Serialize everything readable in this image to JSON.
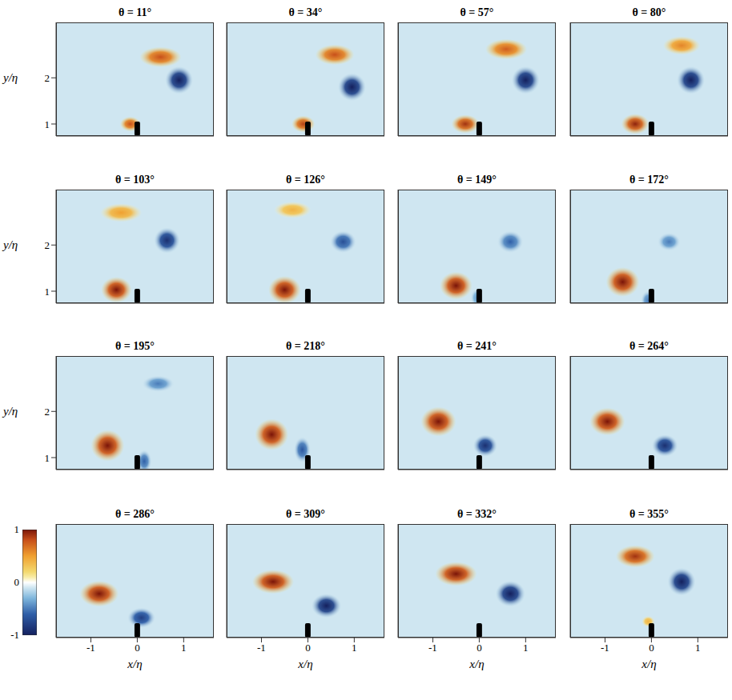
{
  "chart_data": {
    "type": "heatmap",
    "x_label": "x/η",
    "y_label": "y/η",
    "xlim": [
      -1.75,
      1.65
    ],
    "ylim": [
      0.74,
      3.2
    ],
    "xticks": [
      -1,
      0,
      1
    ],
    "yticks": [
      1,
      2
    ],
    "colorbar": {
      "range": [
        -1,
        1
      ],
      "ticks": [
        -1,
        0,
        1
      ]
    },
    "background": -0.1,
    "plate": {
      "x": 0,
      "width": 0.12,
      "tip": 1.05
    },
    "panels": [
      {
        "title": "θ = 11°",
        "vortices": [
          {
            "x": -0.15,
            "y": 1.0,
            "value": 0.8,
            "rx": 0.22,
            "ry": 0.16
          },
          {
            "x": 0.5,
            "y": 2.45,
            "value": 0.8,
            "rx": 0.45,
            "ry": 0.22
          },
          {
            "x": 0.9,
            "y": 1.95,
            "value": -1,
            "rx": 0.3,
            "ry": 0.3
          }
        ]
      },
      {
        "title": "θ = 34°",
        "vortices": [
          {
            "x": -0.1,
            "y": 1.0,
            "value": 0.85,
            "rx": 0.25,
            "ry": 0.18
          },
          {
            "x": 0.58,
            "y": 2.5,
            "value": 0.8,
            "rx": 0.42,
            "ry": 0.22
          },
          {
            "x": 0.95,
            "y": 1.8,
            "value": -1,
            "rx": 0.3,
            "ry": 0.3
          }
        ]
      },
      {
        "title": "θ = 57°",
        "vortices": [
          {
            "x": -0.3,
            "y": 1.0,
            "value": 0.9,
            "rx": 0.3,
            "ry": 0.2
          },
          {
            "x": 0.58,
            "y": 2.62,
            "value": 0.75,
            "rx": 0.45,
            "ry": 0.22
          },
          {
            "x": 1.0,
            "y": 1.95,
            "value": -1,
            "rx": 0.3,
            "ry": 0.3
          }
        ]
      },
      {
        "title": "θ = 80°",
        "vortices": [
          {
            "x": -0.35,
            "y": 1.0,
            "value": 0.95,
            "rx": 0.3,
            "ry": 0.22
          },
          {
            "x": 0.65,
            "y": 2.7,
            "value": 0.6,
            "rx": 0.4,
            "ry": 0.2
          },
          {
            "x": 0.85,
            "y": 1.95,
            "value": -1,
            "rx": 0.3,
            "ry": 0.3
          }
        ]
      },
      {
        "title": "θ = 103°",
        "vortices": [
          {
            "x": -0.45,
            "y": 1.03,
            "value": 1,
            "rx": 0.33,
            "ry": 0.28
          },
          {
            "x": -0.35,
            "y": 2.7,
            "value": 0.5,
            "rx": 0.45,
            "ry": 0.2
          },
          {
            "x": 0.64,
            "y": 2.1,
            "value": -0.9,
            "rx": 0.28,
            "ry": 0.28
          }
        ]
      },
      {
        "title": "θ = 126°",
        "vortices": [
          {
            "x": -0.5,
            "y": 1.03,
            "value": 1,
            "rx": 0.35,
            "ry": 0.3
          },
          {
            "x": -0.33,
            "y": 2.76,
            "value": 0.4,
            "rx": 0.4,
            "ry": 0.18
          },
          {
            "x": 0.76,
            "y": 2.07,
            "value": -0.7,
            "rx": 0.28,
            "ry": 0.24
          }
        ]
      },
      {
        "title": "θ = 149°",
        "vortices": [
          {
            "x": -0.5,
            "y": 1.12,
            "value": 1,
            "rx": 0.35,
            "ry": 0.3
          },
          {
            "x": 0.67,
            "y": 2.07,
            "value": -0.6,
            "rx": 0.28,
            "ry": 0.24
          },
          {
            "x": -0.05,
            "y": 0.86,
            "value": -0.4,
            "rx": 0.14,
            "ry": 0.2
          }
        ]
      },
      {
        "title": "θ = 172°",
        "vortices": [
          {
            "x": -0.62,
            "y": 1.2,
            "value": 1,
            "rx": 0.36,
            "ry": 0.32
          },
          {
            "x": 0.38,
            "y": 2.07,
            "value": -0.5,
            "rx": 0.25,
            "ry": 0.2
          },
          {
            "x": -0.07,
            "y": 0.8,
            "value": -0.5,
            "rx": 0.16,
            "ry": 0.22
          }
        ]
      },
      {
        "title": "θ = 195°",
        "vortices": [
          {
            "x": -0.64,
            "y": 1.26,
            "value": 1,
            "rx": 0.36,
            "ry": 0.34
          },
          {
            "x": 0.45,
            "y": 2.6,
            "value": -0.5,
            "rx": 0.35,
            "ry": 0.18
          },
          {
            "x": 0.15,
            "y": 0.92,
            "value": -0.6,
            "rx": 0.16,
            "ry": 0.25
          }
        ]
      },
      {
        "title": "θ = 218°",
        "vortices": [
          {
            "x": -0.78,
            "y": 1.5,
            "value": 1,
            "rx": 0.36,
            "ry": 0.34
          },
          {
            "x": -0.12,
            "y": 1.17,
            "value": -0.65,
            "rx": 0.18,
            "ry": 0.28
          }
        ]
      },
      {
        "title": "θ = 241°",
        "vortices": [
          {
            "x": -0.88,
            "y": 1.78,
            "value": 1,
            "rx": 0.38,
            "ry": 0.32
          },
          {
            "x": 0.13,
            "y": 1.26,
            "value": -0.9,
            "rx": 0.26,
            "ry": 0.24
          }
        ]
      },
      {
        "title": "θ = 264°",
        "vortices": [
          {
            "x": -0.95,
            "y": 1.78,
            "value": 1,
            "rx": 0.38,
            "ry": 0.3
          },
          {
            "x": 0.29,
            "y": 1.26,
            "value": -0.9,
            "rx": 0.28,
            "ry": 0.24
          }
        ]
      },
      {
        "title": "θ = 286°",
        "vortices": [
          {
            "x": -0.82,
            "y": 1.69,
            "value": 1,
            "rx": 0.42,
            "ry": 0.28
          },
          {
            "x": 0.09,
            "y": 1.17,
            "value": -0.8,
            "rx": 0.3,
            "ry": 0.22
          }
        ]
      },
      {
        "title": "θ = 309°",
        "vortices": [
          {
            "x": -0.75,
            "y": 1.95,
            "value": 1,
            "rx": 0.45,
            "ry": 0.26
          },
          {
            "x": 0.4,
            "y": 1.43,
            "value": -1,
            "rx": 0.32,
            "ry": 0.26
          }
        ]
      },
      {
        "title": "θ = 332°",
        "vortices": [
          {
            "x": -0.5,
            "y": 2.12,
            "value": 1,
            "rx": 0.45,
            "ry": 0.26
          },
          {
            "x": 0.67,
            "y": 1.69,
            "value": -1,
            "rx": 0.32,
            "ry": 0.28
          }
        ]
      },
      {
        "title": "θ = 355°",
        "vortices": [
          {
            "x": -0.35,
            "y": 2.5,
            "value": 0.9,
            "rx": 0.42,
            "ry": 0.24
          },
          {
            "x": 0.65,
            "y": 1.95,
            "value": -1,
            "rx": 0.3,
            "ry": 0.3
          },
          {
            "x": -0.07,
            "y": 1.09,
            "value": 0.4,
            "rx": 0.14,
            "ry": 0.12
          }
        ]
      }
    ]
  }
}
